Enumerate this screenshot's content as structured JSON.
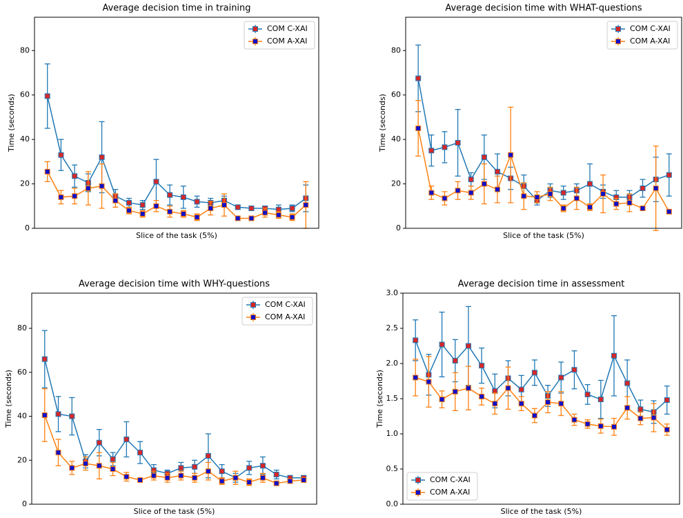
{
  "chart_data": [
    {
      "type": "errorbar",
      "title": "Average decision time in training",
      "xlabel": "Slice of the task (5%)",
      "ylabel": "Time (seconds)",
      "categories": [
        null,
        null,
        null,
        null,
        null,
        null,
        null,
        null,
        null,
        null,
        null,
        null,
        null,
        null,
        null,
        null,
        null,
        null,
        null,
        null
      ],
      "ylim": [
        0,
        95
      ],
      "yticks": [
        0,
        20,
        40,
        60,
        80
      ],
      "legend": "upper right",
      "series": [
        {
          "name": "COM C-XAI",
          "color": "#1f77b4",
          "marker_color": "#d62728",
          "values": [
            59.5,
            33,
            23.5,
            20.5,
            32,
            14.5,
            11.5,
            10.5,
            21,
            15,
            14,
            12,
            11.5,
            12.5,
            9.5,
            9,
            9,
            8.5,
            9,
            13.5
          ],
          "error": [
            14.5,
            7,
            5,
            4,
            16,
            3,
            2,
            2,
            10,
            4.5,
            5,
            2.5,
            2,
            2,
            1,
            1,
            1,
            2,
            1.5,
            6
          ]
        },
        {
          "name": "COM A-XAI",
          "color": "#ff7f0e",
          "marker_color": "#1010c8",
          "values": [
            25.5,
            14,
            14.5,
            18,
            19,
            12.5,
            8,
            6.5,
            10,
            7.5,
            6.5,
            5,
            9,
            10.5,
            4.5,
            4.5,
            7,
            6,
            5,
            10.5
          ],
          "error": [
            4.5,
            3,
            3.5,
            7.5,
            10,
            3,
            1.5,
            1.5,
            2.5,
            2.5,
            1.5,
            1.5,
            3,
            5,
            1,
            1,
            2,
            1.5,
            1.5,
            10.5
          ]
        }
      ]
    },
    {
      "type": "errorbar",
      "title": "Average decision time with WHAT-questions",
      "xlabel": "Slice of the task (5%)",
      "ylabel": "Time (seconds)",
      "categories": [
        null,
        null,
        null,
        null,
        null,
        null,
        null,
        null,
        null,
        null,
        null,
        null,
        null,
        null,
        null,
        null,
        null,
        null,
        null,
        null
      ],
      "ylim": [
        0,
        95
      ],
      "yticks": [
        0,
        20,
        40,
        60,
        80
      ],
      "legend": "upper right",
      "series": [
        {
          "name": "COM C-XAI",
          "color": "#1f77b4",
          "marker_color": "#d62728",
          "values": [
            67.5,
            35,
            36.5,
            38.5,
            22,
            32,
            25.5,
            22.5,
            19,
            12.5,
            17,
            16,
            17,
            20,
            16.5,
            14,
            14,
            18,
            22,
            24
          ],
          "error": [
            15,
            7,
            7,
            15,
            3,
            10,
            8,
            5,
            5,
            2,
            3,
            3,
            3,
            9,
            3,
            3,
            3,
            4,
            10,
            9.5
          ]
        },
        {
          "name": "COM A-XAI",
          "color": "#ff7f0e",
          "marker_color": "#1010c8",
          "values": [
            45,
            16,
            13.5,
            17,
            16,
            20,
            17.5,
            33,
            14.5,
            14,
            15.5,
            9,
            13.5,
            9.5,
            15.5,
            11,
            11.5,
            9,
            18,
            7.5
          ],
          "error": [
            12.5,
            3,
            3,
            4,
            3,
            9,
            6,
            21.5,
            6,
            2.5,
            3,
            1.5,
            5,
            1.5,
            8.5,
            2.5,
            4,
            1,
            19,
            1
          ]
        }
      ]
    },
    {
      "type": "errorbar",
      "title": "Average decision time with WHY-questions",
      "xlabel": "Slice of the task (5%)",
      "ylabel": "Time (seconds)",
      "categories": [
        null,
        null,
        null,
        null,
        null,
        null,
        null,
        null,
        null,
        null,
        null,
        null,
        null,
        null,
        null,
        null,
        null,
        null,
        null,
        null
      ],
      "ylim": [
        0,
        96
      ],
      "yticks": [
        0,
        20,
        40,
        60,
        80
      ],
      "legend": "upper right",
      "series": [
        {
          "name": "COM C-XAI",
          "color": "#1f77b4",
          "marker_color": "#d62728",
          "values": [
            66,
            41,
            40,
            19.5,
            28,
            20.5,
            29.5,
            23.5,
            15.5,
            14,
            16.5,
            17,
            22,
            15,
            12,
            16.5,
            17.5,
            13.5,
            12,
            12
          ],
          "error": [
            13,
            8,
            8.5,
            3,
            6,
            3,
            8,
            5,
            2.5,
            1.5,
            2.5,
            3,
            10,
            3,
            2,
            3,
            4,
            2,
            1,
            1
          ]
        },
        {
          "name": "COM A-XAI",
          "color": "#ff7f0e",
          "marker_color": "#1010c8",
          "values": [
            40.5,
            23.5,
            16.5,
            18.5,
            17.5,
            16,
            12.5,
            11,
            13,
            12,
            13,
            12,
            15,
            10.5,
            12,
            10,
            12,
            9.5,
            10.5,
            11
          ],
          "error": [
            12,
            6,
            3,
            3,
            6,
            3,
            2,
            1,
            2,
            2,
            2,
            2,
            4,
            1.5,
            3,
            1.5,
            2,
            1,
            1,
            1
          ]
        }
      ]
    },
    {
      "type": "errorbar",
      "title": "Average decision time in assessment",
      "xlabel": "Slice of the task (5%)",
      "ylabel": "Time (seconds)",
      "categories": [
        null,
        null,
        null,
        null,
        null,
        null,
        null,
        null,
        null,
        null,
        null,
        null,
        null,
        null,
        null,
        null,
        null,
        null,
        null,
        null
      ],
      "ylim": [
        0,
        3
      ],
      "yticks": [
        {
          "value": 0,
          "label": "0.0"
        },
        0.5,
        {
          "value": 1,
          "label": "1.0"
        },
        1.5,
        {
          "value": 2,
          "label": "2.0"
        },
        2.5,
        {
          "value": 3,
          "label": "3.0"
        }
      ],
      "legend": "lower left",
      "series": [
        {
          "name": "COM C-XAI",
          "color": "#1f77b4",
          "marker_color": "#d62728",
          "values": [
            2.33,
            1.84,
            2.27,
            2.04,
            2.25,
            1.97,
            1.61,
            1.79,
            1.63,
            1.87,
            1.54,
            1.8,
            1.91,
            1.56,
            1.49,
            2.11,
            1.72,
            1.35,
            1.31,
            1.48
          ],
          "error": [
            0.29,
            0.29,
            0.46,
            0.3,
            0.56,
            0.25,
            0.24,
            0.25,
            0.2,
            0.18,
            0.15,
            0.22,
            0.27,
            0.14,
            0.27,
            0.57,
            0.33,
            0.13,
            0.16,
            0.2
          ]
        },
        {
          "name": "COM A-XAI",
          "color": "#ff7f0e",
          "marker_color": "#1010c8",
          "values": [
            1.8,
            1.74,
            1.49,
            1.6,
            1.65,
            1.53,
            1.43,
            1.65,
            1.43,
            1.26,
            1.45,
            1.43,
            1.2,
            1.14,
            1.11,
            1.1,
            1.37,
            1.22,
            1.23,
            1.06
          ],
          "error": [
            0.26,
            0.36,
            0.12,
            0.27,
            0.31,
            0.12,
            0.15,
            0.3,
            0.1,
            0.1,
            0.15,
            0.17,
            0.08,
            0.06,
            0.1,
            0.12,
            0.16,
            0.09,
            0.2,
            0.08
          ]
        }
      ]
    }
  ]
}
